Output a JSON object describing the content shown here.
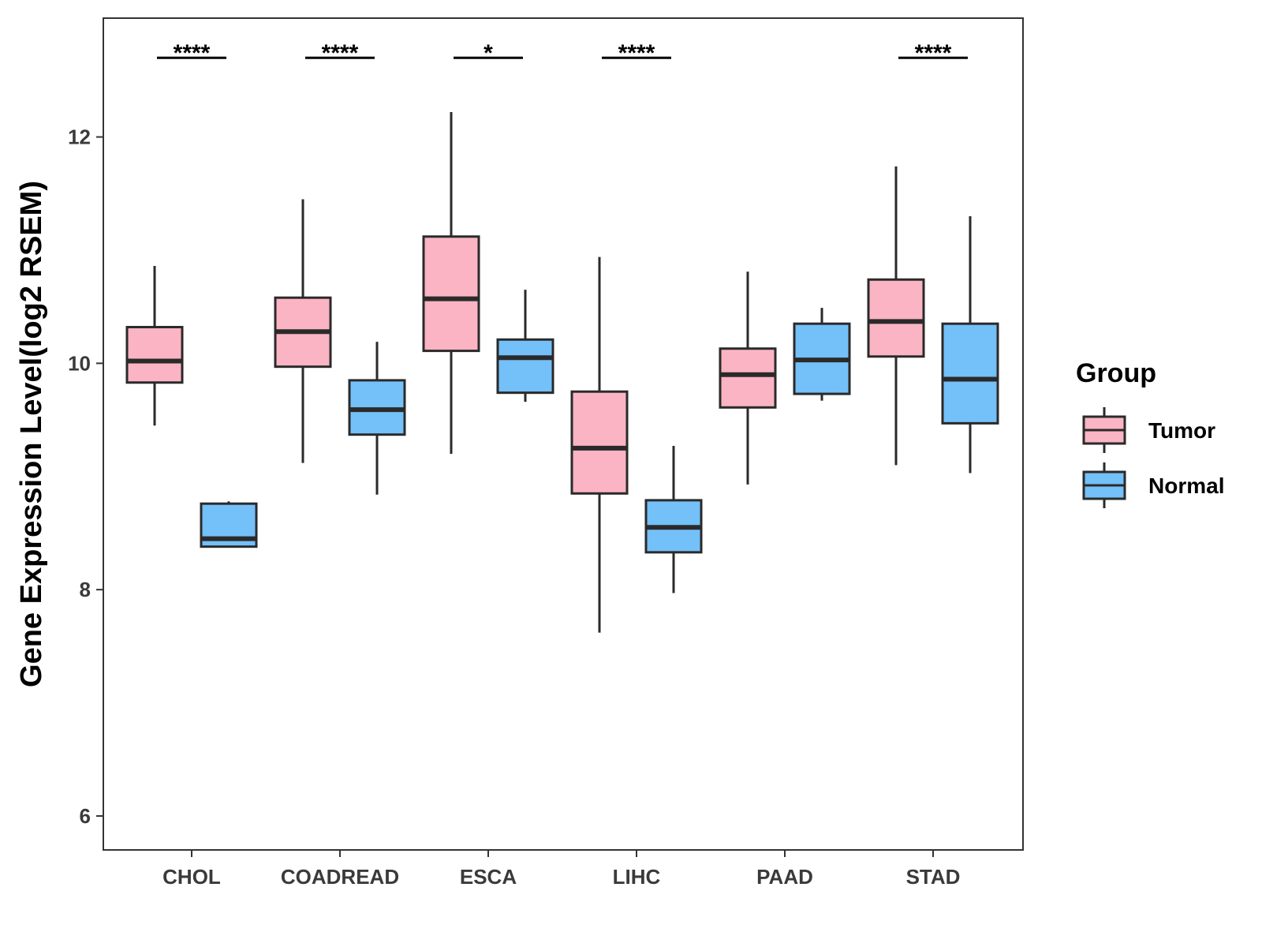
{
  "chart_data": {
    "type": "boxplot",
    "title": "",
    "xlabel": "",
    "ylabel": "Gene Expression Level(log2 RSEM)",
    "ylim": [
      5.7,
      13.05
    ],
    "yticks": [
      6,
      8,
      10,
      12
    ],
    "grid": false,
    "categories": [
      "CHOL",
      "COADREAD",
      "ESCA",
      "LIHC",
      "PAAD",
      "STAD"
    ],
    "legend": {
      "title": "Group",
      "position": "right"
    },
    "series": [
      {
        "name": "Tumor",
        "color": "#FBB4C4",
        "boxes": [
          {
            "min": 9.45,
            "q1": 9.83,
            "median": 10.02,
            "q3": 10.32,
            "max": 10.86
          },
          {
            "min": 9.12,
            "q1": 9.97,
            "median": 10.28,
            "q3": 10.58,
            "max": 11.45
          },
          {
            "min": 9.2,
            "q1": 10.11,
            "median": 10.57,
            "q3": 11.12,
            "max": 12.22
          },
          {
            "min": 7.62,
            "q1": 8.85,
            "median": 9.25,
            "q3": 9.75,
            "max": 10.94
          },
          {
            "min": 8.93,
            "q1": 9.61,
            "median": 9.9,
            "q3": 10.13,
            "max": 10.81
          },
          {
            "min": 9.1,
            "q1": 10.06,
            "median": 10.37,
            "q3": 10.74,
            "max": 11.74
          }
        ]
      },
      {
        "name": "Normal",
        "color": "#74C0F8",
        "boxes": [
          {
            "min": 8.38,
            "q1": 8.38,
            "median": 8.45,
            "q3": 8.76,
            "max": 8.78
          },
          {
            "min": 8.84,
            "q1": 9.37,
            "median": 9.59,
            "q3": 9.85,
            "max": 10.19
          },
          {
            "min": 9.66,
            "q1": 9.74,
            "median": 10.05,
            "q3": 10.21,
            "max": 10.65
          },
          {
            "min": 7.97,
            "q1": 8.33,
            "median": 8.55,
            "q3": 8.79,
            "max": 9.27
          },
          {
            "min": 9.67,
            "q1": 9.73,
            "median": 10.03,
            "q3": 10.35,
            "max": 10.49
          },
          {
            "min": 9.03,
            "q1": 9.47,
            "median": 9.86,
            "q3": 10.35,
            "max": 11.3
          }
        ]
      }
    ],
    "annotations": [
      {
        "category": "CHOL",
        "label": "****",
        "y": 12.7
      },
      {
        "category": "COADREAD",
        "label": "****",
        "y": 12.7
      },
      {
        "category": "ESCA",
        "label": "*",
        "y": 12.7
      },
      {
        "category": "LIHC",
        "label": "****",
        "y": 12.7
      },
      {
        "category": "STAD",
        "label": "****",
        "y": 12.7
      }
    ]
  }
}
